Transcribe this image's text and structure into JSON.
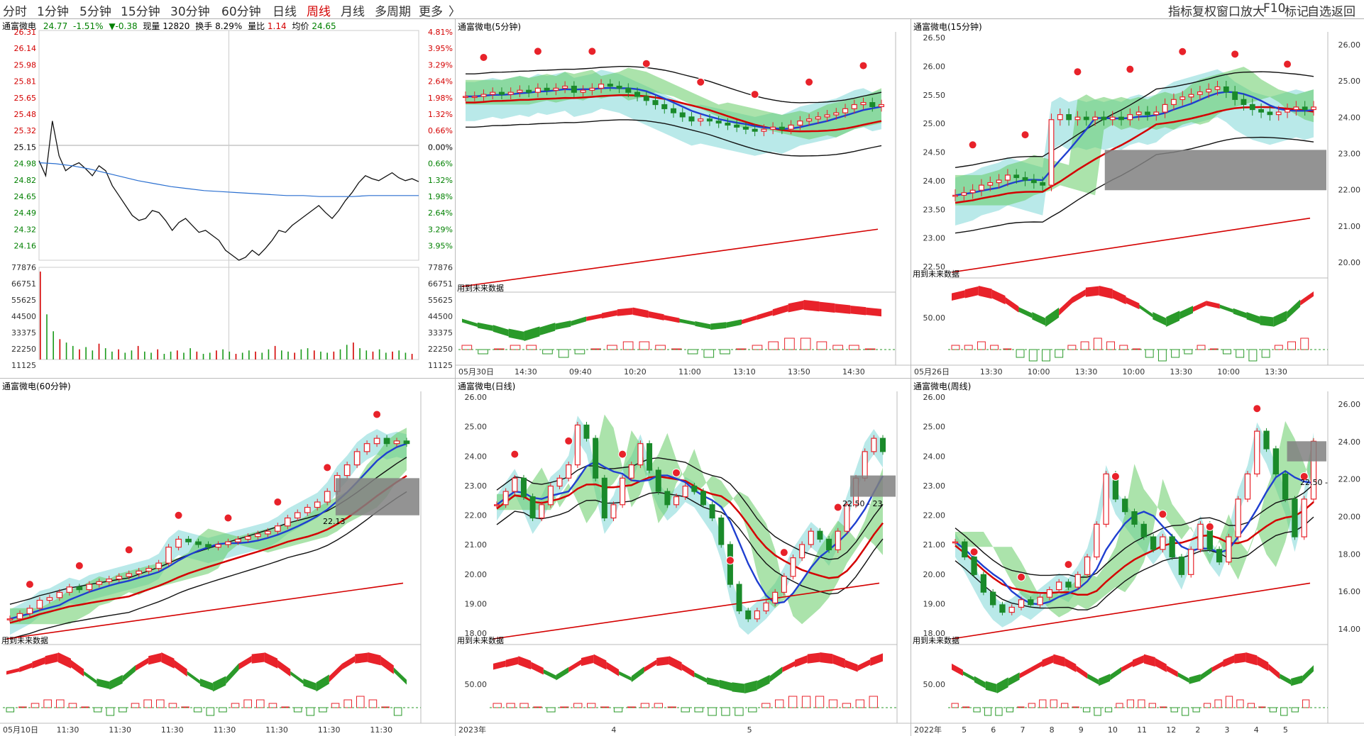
{
  "toolbar": {
    "tabs": [
      {
        "label": "分时",
        "active": false
      },
      {
        "label": "1分钟",
        "active": false
      },
      {
        "label": "5分钟",
        "active": false
      },
      {
        "label": "15分钟",
        "active": false
      },
      {
        "label": "30分钟",
        "active": false
      },
      {
        "label": "60分钟",
        "active": false
      },
      {
        "label": "日线",
        "active": false
      },
      {
        "label": "周线",
        "active": true
      },
      {
        "label": "月线",
        "active": false
      },
      {
        "label": "多周期",
        "active": false
      },
      {
        "label": "更多",
        "active": false
      }
    ],
    "more_arrow": "〉",
    "right_tools": [
      "指标",
      "复权",
      "窗口",
      "放大",
      "F10",
      "标记",
      "自选",
      "返回"
    ]
  },
  "timeshare": {
    "name": "通富微电",
    "price": "24.77",
    "pct": "-1.51%",
    "chg": "▼-0.38",
    "vol_label": "现量",
    "vol": "12820",
    "turn_label": "换手",
    "turn": "8.29%",
    "ratio_label": "量比",
    "ratio": "1.14",
    "avg_label": "均价",
    "avg": "24.65",
    "price_ticks": [
      "26.31",
      "26.14",
      "25.98",
      "25.81",
      "25.65",
      "25.48",
      "25.32",
      "25.15",
      "24.98",
      "24.82",
      "24.65",
      "24.49",
      "24.32",
      "24.16"
    ],
    "pct_ticks": [
      "4.81%",
      "3.95%",
      "3.29%",
      "2.64%",
      "1.98%",
      "1.32%",
      "0.66%",
      "0.00%",
      "0.66%",
      "1.32%",
      "1.98%",
      "2.64%",
      "3.29%",
      "3.95%"
    ],
    "vol_ticks": [
      "77876",
      "66751",
      "55625",
      "44500",
      "33375",
      "22250",
      "11125"
    ],
    "chart_data": {
      "type": "line",
      "ylim": [
        24.0,
        26.31
      ],
      "series": [
        {
          "values": [
            25.0,
            24.85,
            25.4,
            25.05,
            24.9,
            24.95,
            24.98,
            24.92,
            24.85,
            24.95,
            24.9,
            24.75,
            24.65,
            24.55,
            24.45,
            24.4,
            24.42,
            24.5,
            24.48,
            24.4,
            24.3,
            24.38,
            24.42,
            24.35,
            24.28,
            24.3,
            24.25,
            24.2,
            24.1,
            24.05,
            24.0,
            24.03,
            24.1,
            24.05,
            24.12,
            24.2,
            24.3,
            24.28,
            24.35,
            24.4,
            24.45,
            24.5,
            24.55,
            24.48,
            24.42,
            24.5,
            24.6,
            24.68,
            24.78,
            24.85,
            24.82,
            24.8,
            24.84,
            24.88,
            24.83,
            24.8,
            24.82,
            24.79
          ]
        },
        {
          "values": [
            24.98,
            24.97,
            24.95,
            24.92,
            24.88,
            24.84,
            24.8,
            24.77,
            24.74,
            24.72,
            24.7,
            24.69,
            24.68,
            24.67,
            24.66,
            24.65,
            24.65,
            24.64,
            24.64,
            24.64,
            24.65,
            24.65,
            24.65,
            24.65
          ]
        }
      ],
      "volume": [
        77876,
        40000,
        25000,
        18000,
        15000,
        12000,
        9000,
        11000,
        8000,
        14000,
        10000,
        7000,
        9000,
        6000,
        8000,
        12000,
        7000,
        6000,
        9000,
        5000,
        7000,
        8000,
        6000,
        10000,
        7000,
        5000,
        6000,
        8000,
        9000,
        7000,
        5000,
        6000,
        8000,
        7000,
        6000,
        9000,
        12000,
        8000,
        7000,
        6000,
        9000,
        10000,
        8000,
        7000,
        6000,
        7000,
        9000,
        13000,
        15000,
        10000,
        8000,
        7000,
        9000,
        6000,
        7000,
        8000,
        6000,
        5000
      ]
    }
  },
  "panels": [
    {
      "id": "p5",
      "title": "通富微电(5分钟)",
      "future_label": "用到未来数据",
      "xlabels": [
        "05月30日",
        "14:30",
        "09:40",
        "10:20",
        "11:00",
        "13:10",
        "13:50",
        "14:30"
      ],
      "right_ticks": [],
      "chart_data": {
        "type": "candlestick",
        "ylim": [
          20.5,
          26.5
        ],
        "close": [
          25.1,
          25.1,
          25.15,
          25.2,
          25.15,
          25.2,
          25.25,
          25.2,
          25.3,
          25.25,
          25.3,
          25.35,
          25.2,
          25.25,
          25.3,
          25.4,
          25.35,
          25.3,
          25.2,
          25.1,
          25.0,
          24.9,
          24.8,
          24.7,
          24.6,
          24.5,
          24.55,
          24.5,
          24.45,
          24.4,
          24.35,
          24.3,
          24.25,
          24.3,
          24.35,
          24.3,
          24.4,
          24.5,
          24.55,
          24.6,
          24.65,
          24.7,
          24.8,
          24.9,
          24.95,
          24.85,
          24.9
        ]
      }
    },
    {
      "id": "p15",
      "title": "通富微电(15分钟)",
      "future_label": "用到未来数据",
      "xlabels": [
        "05月26日",
        "13:30",
        "10:00",
        "13:30",
        "10:00",
        "13:30",
        "10:00",
        "13:30"
      ],
      "left_ticks": [
        "26.50",
        "26.00",
        "25.50",
        "25.00",
        "24.50",
        "24.00",
        "23.50",
        "23.00",
        "22.50"
      ],
      "right_ticks": [
        "26.00",
        "25.00",
        "24.00",
        "23.00",
        "22.00",
        "21.00",
        "20.00"
      ],
      "sub_tick": "50.00",
      "chart_data": {
        "type": "candlestick",
        "ylim": [
          22.2,
          26.8
        ],
        "close": [
          23.7,
          23.75,
          23.8,
          23.9,
          23.95,
          24.0,
          24.1,
          24.05,
          24.0,
          23.95,
          23.9,
          25.2,
          25.3,
          25.2,
          25.25,
          25.2,
          25.25,
          25.2,
          25.25,
          25.2,
          25.3,
          25.35,
          25.3,
          25.35,
          25.5,
          25.6,
          25.65,
          25.7,
          25.75,
          25.8,
          25.85,
          25.75,
          25.6,
          25.5,
          25.4,
          25.35,
          25.3,
          25.35,
          25.4,
          25.45,
          25.4,
          25.45
        ]
      }
    },
    {
      "id": "p60",
      "title": "通富微电(60分钟)",
      "future_label": "用到未来数据",
      "xlabels": [
        "05月10日",
        "11:30",
        "11:30",
        "11:30",
        "11:30",
        "11:30",
        "11:30",
        "11:30"
      ],
      "right_ticks": [],
      "annot": "22.13",
      "chart_data": {
        "type": "candlestick",
        "ylim": [
          17.5,
          26.5
        ],
        "close": [
          18.2,
          18.4,
          18.6,
          18.9,
          19.0,
          19.2,
          19.4,
          19.3,
          19.5,
          19.6,
          19.7,
          19.8,
          19.9,
          20.0,
          20.1,
          20.3,
          20.9,
          21.2,
          21.1,
          21.0,
          20.9,
          21.0,
          21.1,
          21.2,
          21.3,
          21.4,
          21.5,
          21.7,
          22.0,
          22.2,
          22.4,
          22.6,
          23.0,
          23.6,
          24.0,
          24.5,
          24.8,
          25.0,
          24.8,
          24.9,
          24.8
        ]
      }
    },
    {
      "id": "pday",
      "title": "通富微电(日线)",
      "future_label": "用到未来数据",
      "xlabels": [
        "2023年",
        "4",
        "5"
      ],
      "left_ticks": [
        "26.00",
        "25.00",
        "24.00",
        "23.00",
        "22.00",
        "21.00",
        "20.00",
        "19.00",
        "18.00"
      ],
      "annot": "22.50 - 23",
      "sub_tick": "50.00",
      "chart_data": {
        "type": "candlestick",
        "ylim": [
          17.5,
          26.5
        ],
        "close": [
          22.5,
          23.0,
          23.5,
          22.8,
          22.0,
          22.5,
          23.2,
          23.5,
          24.0,
          25.5,
          25.0,
          23.5,
          22.0,
          22.5,
          23.5,
          24.0,
          24.8,
          23.8,
          23.0,
          22.5,
          22.8,
          23.2,
          23.0,
          22.5,
          22.0,
          21.0,
          19.5,
          18.5,
          18.2,
          18.5,
          18.8,
          19.2,
          19.8,
          20.5,
          21.0,
          21.5,
          21.2,
          20.8,
          21.5,
          22.5,
          23.5,
          24.5,
          25.0,
          24.5
        ]
      }
    },
    {
      "id": "pweek",
      "title": "通富微电(周线)",
      "future_label": "用到未来数据",
      "xlabels": [
        "2022年",
        "5",
        "6",
        "7",
        "8",
        "9",
        "10",
        "11",
        "12",
        "2",
        "3",
        "4",
        "5"
      ],
      "left_ticks": [
        "26.00",
        "25.00",
        "24.00",
        "23.00",
        "22.00",
        "21.00",
        "20.00",
        "19.00",
        "18.00"
      ],
      "right_ticks": [
        "26.00",
        "24.00",
        "22.00",
        "20.00",
        "18.00",
        "16.00",
        "14.00"
      ],
      "annot": "22.50 -",
      "sub_tick": "50.00",
      "chart_data": {
        "type": "candlestick",
        "ylim": [
          17.0,
          26.5
        ],
        "close": [
          20.8,
          20.2,
          19.5,
          18.8,
          18.3,
          18.0,
          18.2,
          18.5,
          18.3,
          18.6,
          18.9,
          19.2,
          19.0,
          19.5,
          20.2,
          21.5,
          23.5,
          22.5,
          22.0,
          21.5,
          21.0,
          20.5,
          21.0,
          20.2,
          19.5,
          20.5,
          21.5,
          20.5,
          20.0,
          21.0,
          22.5,
          23.5,
          25.2,
          24.5,
          23.5,
          22.5,
          21.0,
          22.5,
          24.8
        ]
      }
    }
  ],
  "subcharts": {
    "p5": {
      "osc": [
        0,
        -0.3,
        -0.5,
        -0.8,
        -1.0,
        -0.7,
        -0.4,
        -0.2,
        0.1,
        0.3,
        0.5,
        0.6,
        0.4,
        0.2,
        0,
        -0.2,
        -0.4,
        -0.3,
        -0.1,
        0.2,
        0.5,
        0.8,
        1.0,
        0.9,
        0.8,
        0.7,
        0.6,
        0.5
      ],
      "bars": [
        1,
        -1,
        0,
        1,
        1,
        -1,
        -2,
        -1,
        0,
        1,
        2,
        2,
        1,
        0,
        -1,
        -2,
        -1,
        0,
        1,
        2,
        3,
        3,
        2,
        1,
        1,
        0
      ]
    },
    "p15": {
      "osc": [
        0.6,
        0.8,
        1.0,
        0.8,
        0.4,
        -0.2,
        -0.6,
        -1.0,
        -0.4,
        0.4,
        0.9,
        1.0,
        0.8,
        0.4,
        0.0,
        -0.6,
        -1.0,
        -0.6,
        -0.2,
        0.2,
        0.0,
        -0.3,
        -0.6,
        -0.9,
        -1.0,
        -0.6,
        0.2,
        0.8
      ],
      "bars": [
        1,
        1,
        2,
        1,
        0,
        -2,
        -3,
        -3,
        -2,
        1,
        2,
        3,
        2,
        1,
        0,
        -2,
        -3,
        -2,
        -1,
        1,
        0,
        -1,
        -2,
        -3,
        -2,
        1,
        2,
        3
      ]
    },
    "p60": {
      "osc": [
        0,
        0.2,
        0.5,
        0.8,
        1.0,
        0.6,
        0.0,
        -0.6,
        -0.8,
        -0.4,
        0.3,
        0.8,
        1.0,
        0.6,
        0,
        -0.6,
        -0.9,
        -0.5,
        0.4,
        0.9,
        1.0,
        0.6,
        0,
        -0.6,
        -0.9,
        -0.4,
        0.4,
        0.9,
        1.0,
        0.8,
        0.2,
        -0.6
      ],
      "bars": [
        -1,
        0,
        1,
        2,
        2,
        1,
        0,
        -1,
        -2,
        -1,
        1,
        2,
        2,
        1,
        0,
        -1,
        -2,
        -1,
        1,
        2,
        2,
        1,
        0,
        -1,
        -2,
        -1,
        1,
        2,
        3,
        2,
        0,
        -2
      ]
    },
    "pday": {
      "osc": [
        0.4,
        0.6,
        0.8,
        0.5,
        0.1,
        -0.3,
        0.2,
        0.7,
        0.9,
        0.5,
        0.0,
        -0.4,
        0.2,
        0.7,
        0.8,
        0.4,
        -0.1,
        -0.5,
        -0.7,
        -0.9,
        -1.0,
        -0.8,
        -0.4,
        0.2,
        0.6,
        0.9,
        1.0,
        0.9,
        0.6,
        0.3,
        0.7,
        1.0
      ],
      "bars": [
        1,
        1,
        1,
        0,
        -1,
        0,
        1,
        1,
        0,
        -1,
        0,
        1,
        1,
        0,
        -1,
        -1,
        -2,
        -2,
        -2,
        -1,
        1,
        2,
        3,
        3,
        3,
        2,
        1,
        2,
        3
      ]
    },
    "pweek": {
      "osc": [
        0.4,
        0.0,
        -0.4,
        -0.8,
        -1.0,
        -0.6,
        -0.2,
        0.2,
        0.6,
        0.9,
        0.7,
        0.3,
        -0.2,
        -0.6,
        -0.3,
        0.2,
        0.6,
        0.9,
        0.7,
        0.3,
        -0.1,
        -0.5,
        -0.3,
        0.2,
        0.6,
        0.9,
        1.0,
        0.8,
        0.4,
        -0.2,
        -0.6,
        -0.4,
        0.3
      ],
      "bars": [
        1,
        0,
        -1,
        -2,
        -2,
        -1,
        0,
        1,
        2,
        2,
        1,
        0,
        -1,
        -2,
        -1,
        1,
        2,
        2,
        1,
        0,
        -1,
        -2,
        -1,
        1,
        2,
        3,
        2,
        1,
        0,
        -1,
        -2,
        -1,
        2
      ]
    }
  }
}
